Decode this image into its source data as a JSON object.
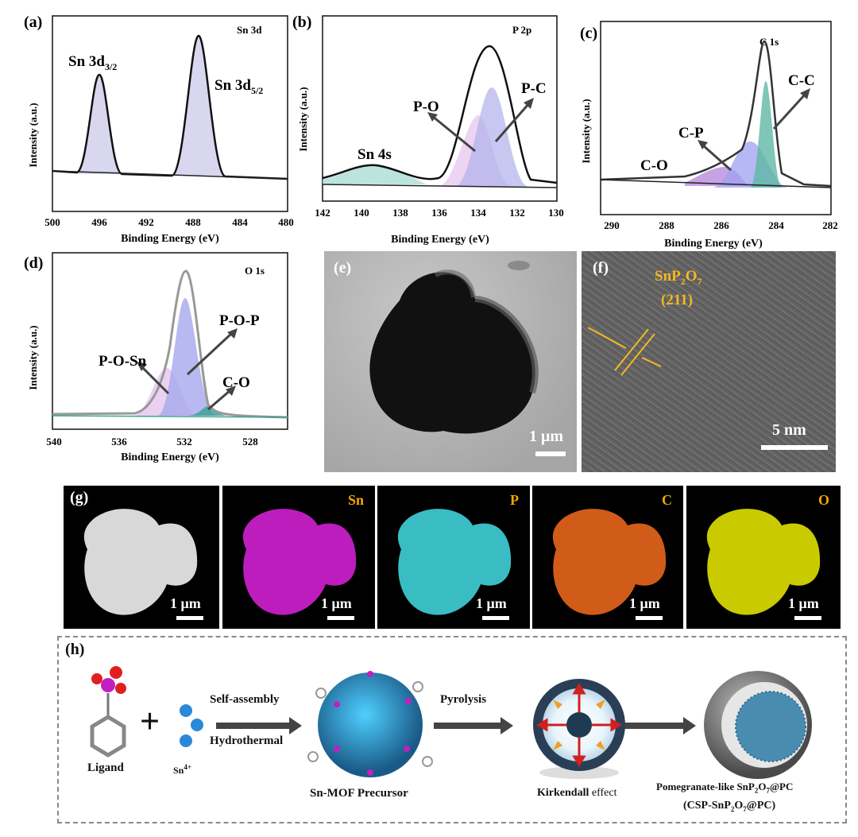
{
  "xps": {
    "a": {
      "label": "(a)",
      "title": "Sn 3d",
      "xlabel": "Binding Energy (eV)",
      "ylabel": "Intensity (a.u.)",
      "ticks": [
        "500",
        "496",
        "492",
        "488",
        "484",
        "480"
      ],
      "peak1": "Sn 3d",
      "peak1_sub": "3/2",
      "peak2": "Sn 3d",
      "peak2_sub": "5/2"
    },
    "b": {
      "label": "(b)",
      "title": "P 2p",
      "xlabel": "Binding Energy (eV)",
      "ylabel": "Intensity (a.u.)",
      "ticks": [
        "142",
        "140",
        "138",
        "136",
        "134",
        "132",
        "130"
      ],
      "anno_po": "P-O",
      "anno_pc": "P-C",
      "anno_sn4s": "Sn 4s"
    },
    "c": {
      "label": "(c)",
      "title": "C 1s",
      "xlabel": "Binding Energy (eV)",
      "ylabel": "Intensity (a.u.)",
      "ticks": [
        "290",
        "288",
        "286",
        "284",
        "282"
      ],
      "anno_cc": "C-C",
      "anno_cp": "C-P",
      "anno_co": "C-O"
    },
    "d": {
      "label": "(d)",
      "title": "O 1s",
      "xlabel": "Binding Energy (eV)",
      "ylabel": "Intensity (a.u.)",
      "ticks": [
        "540",
        "536",
        "532",
        "528"
      ],
      "anno_pop": "P-O-P",
      "anno_posn": "P-O-Sn",
      "anno_co": "C-O"
    }
  },
  "tem": {
    "e": {
      "label": "(e)",
      "scale": "1 μm"
    },
    "f": {
      "label": "(f)",
      "phase_pre": "SnP",
      "sub1": "2",
      "phase_mid": "O",
      "sub2": "7",
      "plane": "(211)",
      "scale": "5 nm"
    }
  },
  "eds": {
    "label": "(g)",
    "maps": [
      {
        "element": "",
        "scale": "1 μm",
        "color": "#d8d8d8"
      },
      {
        "element": "Sn",
        "scale": "1 μm",
        "color": "#d020d0"
      },
      {
        "element": "P",
        "scale": "1 μm",
        "color": "#40d0d8"
      },
      {
        "element": "C",
        "scale": "1 μm",
        "color": "#e8651c"
      },
      {
        "element": "O",
        "scale": "1 μm",
        "color": "#e0e000"
      }
    ]
  },
  "scheme": {
    "label": "(h)",
    "ligand": "Ligand",
    "plus": "+",
    "sn_ion": "Sn",
    "sn_charge": "4+",
    "step1_top": "Self-assembly",
    "step1_bottom": "Hydrothermal",
    "precursor": "Sn-MOF Precursor",
    "step2": "Pyrolysis",
    "kirk1": "Kirkendall",
    "kirk2": " effect",
    "product1_pre": "Pomegranate-like SnP",
    "product1_s1": "2",
    "product1_mid": "O",
    "product1_s2": "7",
    "product1_post": "@PC",
    "product2_pre": "(CSP-SnP",
    "product2_s1": "2",
    "product2_mid": "O",
    "product2_s2": "7",
    "product2_post": "@PC)"
  }
}
